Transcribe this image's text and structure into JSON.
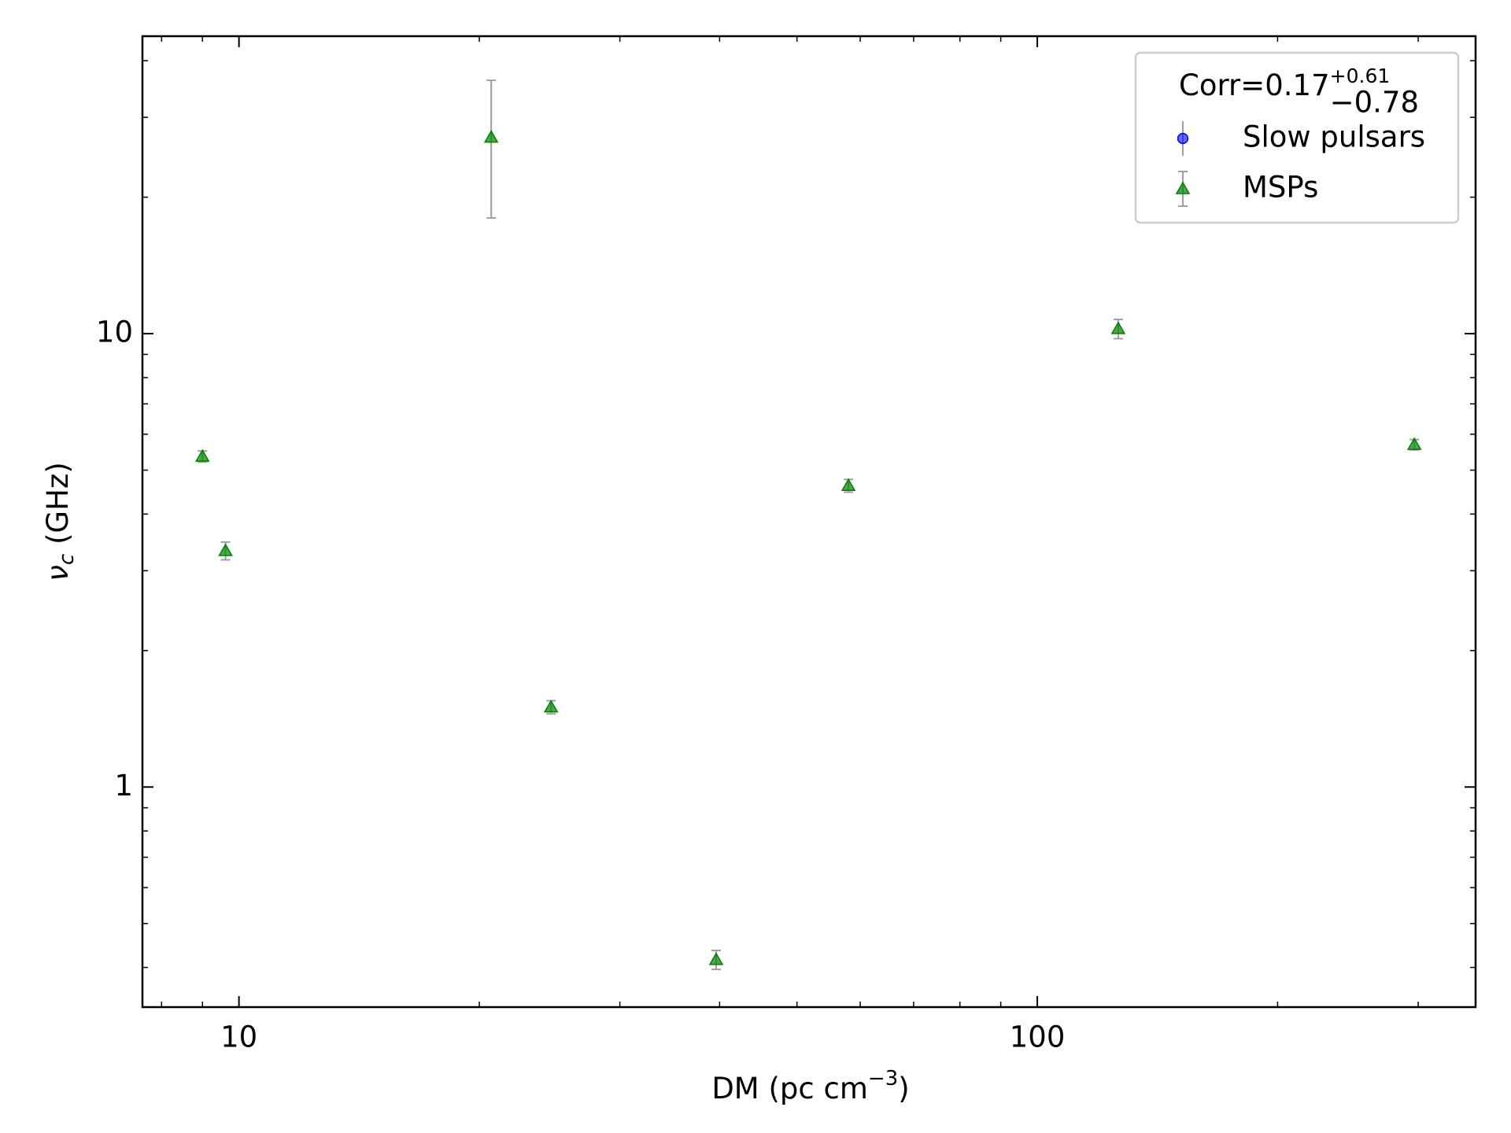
{
  "chart_data": {
    "type": "scatter",
    "xlabel": {
      "main": "DM (pc cm",
      "sup": "−3",
      "end": ")"
    },
    "ylabel": {
      "main": "ν",
      "sub": "c",
      "end": " (GHz)"
    },
    "xlog": true,
    "ylog": true,
    "xlim": [
      7.57,
      354
    ],
    "ylim": [
      0.327,
      45.3
    ],
    "xticks": [
      10,
      100
    ],
    "yticks": [
      1,
      10
    ],
    "xminorticks": [
      8,
      9,
      20,
      30,
      40,
      50,
      60,
      70,
      80,
      90,
      200,
      300
    ],
    "yminorticks": [
      0.4,
      0.5,
      0.6,
      0.7,
      0.8,
      0.9,
      2,
      3,
      4,
      5,
      6,
      7,
      8,
      9,
      20,
      30,
      40
    ],
    "legend_title": {
      "text": "Corr=0.17",
      "upper": "+0.61",
      "lower": "−0.78"
    },
    "legend_position": "upper right",
    "errorbar_color": "#a0a0a0",
    "series": [
      {
        "name": "Slow pulsars",
        "color": "#0000ff",
        "marker": "circle",
        "x": [],
        "values": [],
        "errors": []
      },
      {
        "name": "MSPs",
        "color": "#008000",
        "marker": "triangle",
        "x": [
          9.0,
          9.62,
          20.7,
          24.6,
          39.6,
          58.0,
          126.3,
          296.7
        ],
        "values": [
          5.36,
          3.32,
          27.1,
          1.5,
          0.416,
          4.62,
          10.25,
          5.69
        ],
        "errors": [
          0.15,
          0.15,
          9.1,
          0.05,
          0.02,
          0.15,
          0.5,
          0.15
        ]
      }
    ]
  }
}
